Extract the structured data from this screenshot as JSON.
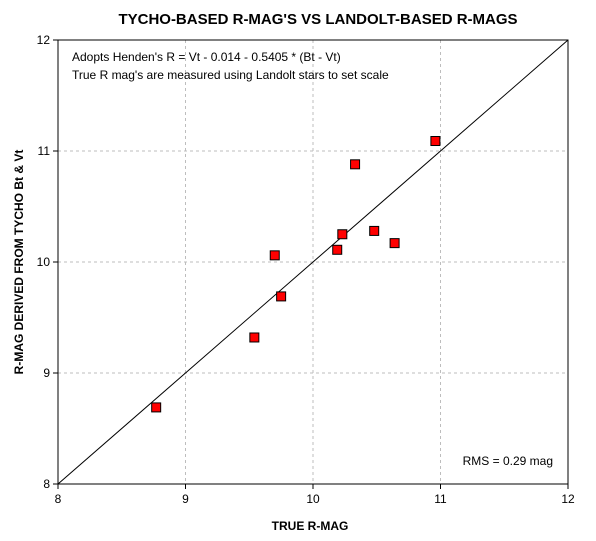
{
  "chart_data": {
    "type": "scatter",
    "title": "TYCHO-BASED R-MAG'S VS LANDOLT-BASED R-MAGS",
    "xlabel": "TRUE R-MAG",
    "ylabel": "R-MAG DERIVED FROM TYCHO Bt & Vt",
    "xlim": [
      8,
      12
    ],
    "ylim": [
      8,
      12
    ],
    "xticks": [
      "8",
      "9",
      "10",
      "11",
      "12"
    ],
    "yticks": [
      "8",
      "9",
      "10",
      "11",
      "12"
    ],
    "grid": true,
    "marker_color": "#ff0000",
    "marker_edge_color": "#000000",
    "points": [
      {
        "x": 8.77,
        "y": 8.69
      },
      {
        "x": 9.54,
        "y": 9.32
      },
      {
        "x": 9.7,
        "y": 10.06
      },
      {
        "x": 9.75,
        "y": 9.69
      },
      {
        "x": 10.19,
        "y": 10.11
      },
      {
        "x": 10.23,
        "y": 10.25
      },
      {
        "x": 10.33,
        "y": 10.88
      },
      {
        "x": 10.48,
        "y": 10.28
      },
      {
        "x": 10.64,
        "y": 10.17
      },
      {
        "x": 10.96,
        "y": 11.09
      }
    ],
    "reference_line": {
      "from": [
        8,
        8
      ],
      "to": [
        12,
        12
      ]
    },
    "annotations": {
      "formula": "Adopts Henden's R = Vt - 0.014 - 0.5405 * (Bt - Vt)",
      "note": "True R mag's are measured using Landolt stars to set scale",
      "rms": "RMS = 0.29 mag"
    }
  }
}
